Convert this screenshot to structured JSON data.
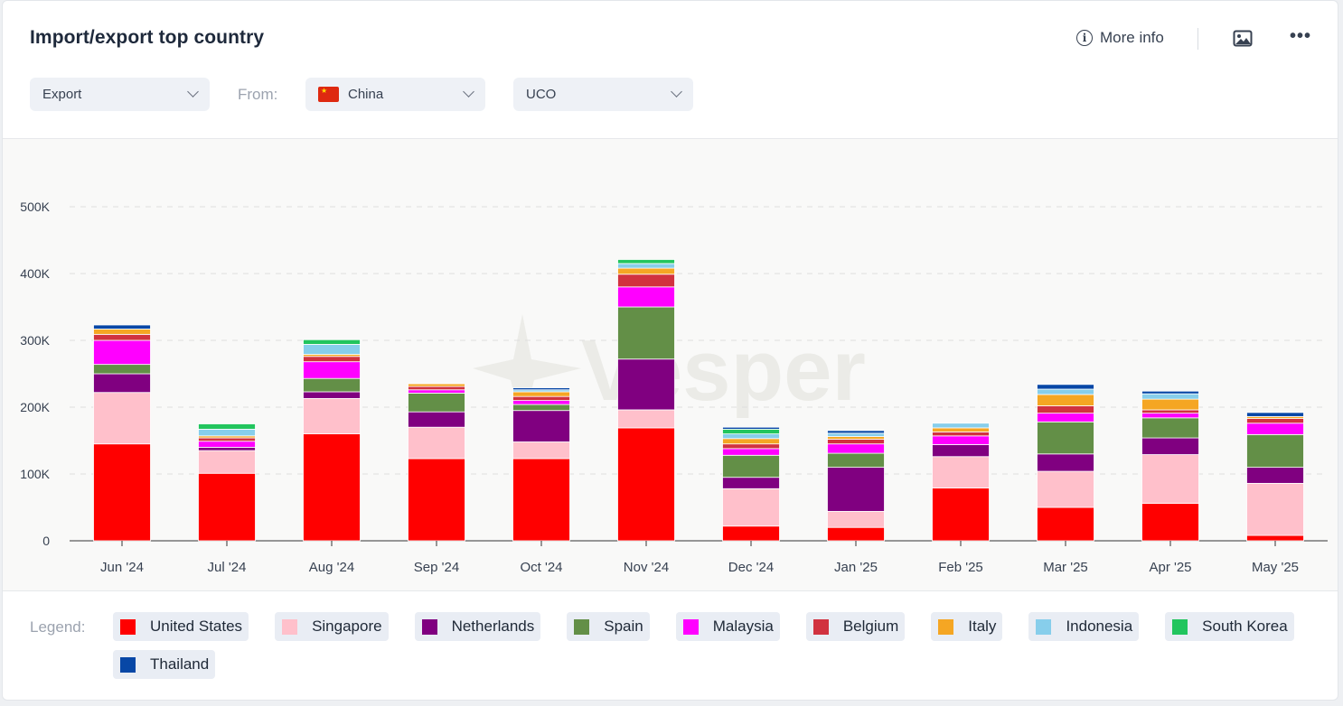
{
  "header": {
    "title": "Import/export top country",
    "more_info_label": "More info",
    "info_glyph": "i",
    "more_glyph": "•••"
  },
  "filters": {
    "flow": "Export",
    "from_label": "From:",
    "country": "China",
    "product": "UCO"
  },
  "legend_label": "Legend:",
  "watermark": "Vesper",
  "chart_data": {
    "type": "bar",
    "stacked": true,
    "title": "Import/export top country",
    "xlabel": "",
    "ylabel": "",
    "ylim": [
      0,
      500000
    ],
    "yticks": [
      0,
      100000,
      200000,
      300000,
      400000,
      500000
    ],
    "ytick_labels": [
      "0",
      "100K",
      "200K",
      "300K",
      "400K",
      "500K"
    ],
    "grid": true,
    "legend_position": "bottom",
    "categories": [
      "Jun '24",
      "Jul '24",
      "Aug '24",
      "Sep '24",
      "Oct '24",
      "Nov '24",
      "Dec '24",
      "Jan '25",
      "Feb '25",
      "Mar '25",
      "Apr '25",
      "May '25"
    ],
    "series": [
      {
        "name": "United States",
        "color": "#ff0000",
        "values": [
          145000,
          101000,
          160000,
          123000,
          123000,
          169000,
          22000,
          20000,
          79000,
          50000,
          56000,
          8000
        ]
      },
      {
        "name": "Singapore",
        "color": "#ffc0cb",
        "values": [
          77000,
          34000,
          53000,
          47000,
          25000,
          27000,
          56000,
          24000,
          47000,
          54000,
          73000,
          78000
        ]
      },
      {
        "name": "Netherlands",
        "color": "#800080",
        "values": [
          28000,
          5000,
          10000,
          23000,
          47000,
          76000,
          17000,
          66000,
          18000,
          26000,
          25000,
          24000
        ]
      },
      {
        "name": "Spain",
        "color": "#638f47",
        "values": [
          14000,
          0,
          20000,
          28000,
          9000,
          78000,
          33000,
          21000,
          0,
          48000,
          30000,
          49000
        ]
      },
      {
        "name": "Malaysia",
        "color": "#ff00ff",
        "values": [
          36000,
          9000,
          25000,
          5000,
          6000,
          30000,
          10000,
          14000,
          13000,
          13000,
          7000,
          17000
        ]
      },
      {
        "name": "Belgium",
        "color": "#d1323f",
        "values": [
          9000,
          5000,
          8000,
          5000,
          6000,
          19000,
          7000,
          7000,
          6000,
          11000,
          5000,
          7000
        ]
      },
      {
        "name": "Italy",
        "color": "#f5a623",
        "values": [
          8000,
          3000,
          3000,
          4000,
          7000,
          9000,
          8000,
          4000,
          6000,
          17000,
          16000,
          3000
        ]
      },
      {
        "name": "Indonesia",
        "color": "#87ceeb",
        "values": [
          0,
          10000,
          15000,
          0,
          3000,
          7000,
          7000,
          5000,
          7000,
          8000,
          8000,
          0
        ]
      },
      {
        "name": "South Korea",
        "color": "#22c55e",
        "values": [
          0,
          8000,
          7000,
          0,
          0,
          6000,
          7000,
          0,
          0,
          0,
          0,
          0
        ]
      },
      {
        "name": "Thailand",
        "color": "#0747a6",
        "values": [
          6000,
          0,
          0,
          0,
          3000,
          0,
          3000,
          4000,
          0,
          7000,
          4000,
          6000
        ]
      }
    ]
  }
}
